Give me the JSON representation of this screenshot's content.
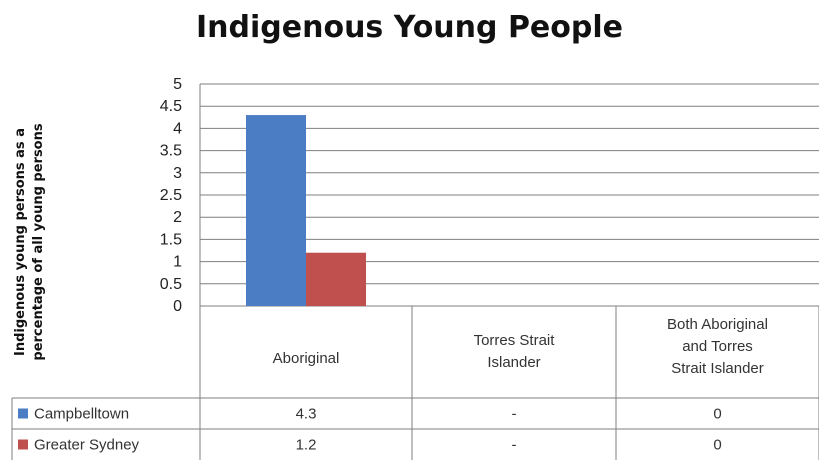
{
  "chart_data": {
    "type": "bar",
    "title": "Indigenous Young People",
    "ylabel_line1": "Indigenous young persons as a",
    "ylabel_line2": "percentage of all young persons",
    "ylim": [
      0,
      5
    ],
    "yticks": [
      "5",
      "4.5",
      "4",
      "3.5",
      "3",
      "2.5",
      "2",
      "1.5",
      "1",
      "0.5",
      "0"
    ],
    "categories": [
      [
        "Aboriginal"
      ],
      [
        "Torres Strait",
        "Islander"
      ],
      [
        "Both Aboriginal",
        "and Torres",
        "Strait Islander"
      ]
    ],
    "series": [
      {
        "name": "Campbelltown",
        "color": "#4a7dc4",
        "values": [
          4.3,
          null,
          0
        ],
        "table_values": [
          "4.3",
          "-",
          "0"
        ]
      },
      {
        "name": "Greater Sydney",
        "color": "#c0504d",
        "values": [
          1.2,
          null,
          0
        ],
        "table_values": [
          "1.2",
          "-",
          "0"
        ]
      }
    ],
    "grid": true,
    "legend": "data-table"
  }
}
